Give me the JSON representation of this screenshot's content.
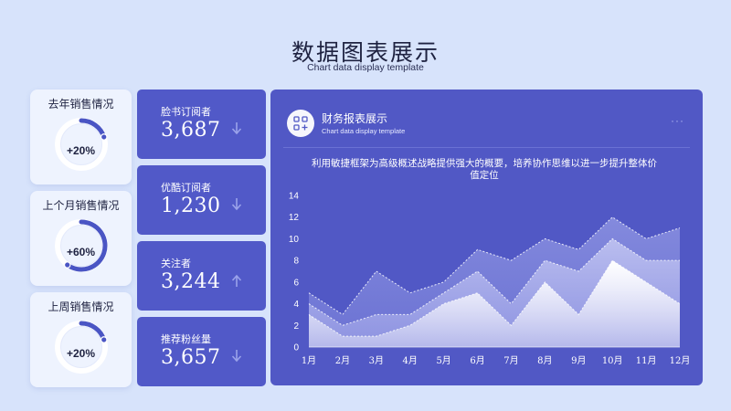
{
  "header": {
    "title": "数据图表展示",
    "subtitle": "Chart data display template"
  },
  "progress_cards": [
    {
      "label": "去年销售情况",
      "value": "+20%",
      "fraction": 0.2
    },
    {
      "label": "上个月销售情况",
      "value": "+60%",
      "fraction": 0.6
    },
    {
      "label": "上周销售情况",
      "value": "+20%",
      "fraction": 0.2
    }
  ],
  "stat_cards": [
    {
      "label": "脸书订阅者",
      "value": "3,687",
      "trend": "down"
    },
    {
      "label": "优酷订阅者",
      "value": "1,230",
      "trend": "down"
    },
    {
      "label": "关注者",
      "value": "3,244",
      "trend": "up"
    },
    {
      "label": "推荐粉丝量",
      "value": "3,657",
      "trend": "down"
    }
  ],
  "panel": {
    "title": "财务报表展示",
    "subtitle": "Chart data display template",
    "more_label": "···",
    "icon": "grid-plus-icon"
  },
  "colors": {
    "background": "#d7e3fb",
    "card": "#5159c8",
    "accent": "#4a55c4"
  },
  "chart_data": {
    "type": "area",
    "title": "利用敏捷框架为高级概述战略提供强大的概要，培养协作思维以进一步提升整体价值定位",
    "categories": [
      "1月",
      "2月",
      "3月",
      "4月",
      "5月",
      "6月",
      "7月",
      "8月",
      "9月",
      "10月",
      "11月",
      "12月"
    ],
    "yticks": [
      "0",
      "2",
      "4",
      "6",
      "8",
      "10",
      "12",
      "14"
    ],
    "ylim": [
      0,
      14
    ],
    "grid": false,
    "series": [
      {
        "values": [
          5,
          3,
          7,
          5,
          6,
          9,
          8,
          10,
          9,
          12,
          10,
          11
        ]
      },
      {
        "values": [
          4,
          2,
          3,
          3,
          5,
          7,
          4,
          8,
          7,
          10,
          8,
          8
        ]
      },
      {
        "values": [
          3,
          1,
          1,
          2,
          4,
          5,
          2,
          6,
          3,
          8,
          6,
          4
        ]
      }
    ]
  }
}
